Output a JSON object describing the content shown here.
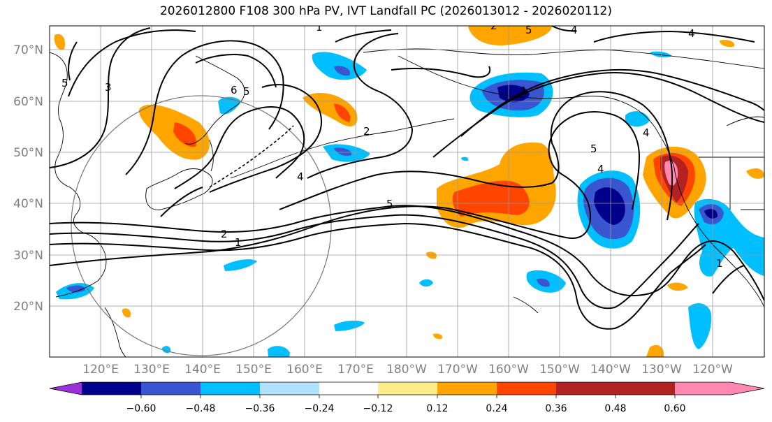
{
  "title": "2026012800 F108 300 hPa PV, IVT Landfall PC (2026013012 - 2026020112)",
  "map": {
    "lon_labels": [
      "120°E",
      "130°E",
      "140°E",
      "150°E",
      "160°E",
      "170°E",
      "180°W",
      "170°W",
      "160°W",
      "150°W",
      "140°W",
      "130°W",
      "120°W"
    ],
    "lat_labels": [
      "70°N",
      "60°N",
      "50°N",
      "40°N",
      "30°N",
      "20°N"
    ],
    "contour_labels": [
      "1",
      "2",
      "3",
      "4",
      "5",
      "5",
      "6",
      "5",
      "4",
      "2",
      "2",
      "1",
      "5",
      "4",
      "5",
      "4",
      "4",
      "1",
      "1"
    ]
  },
  "colorbar": {
    "colors": [
      "#9b30d9",
      "#00008b",
      "#3a55d0",
      "#00bfff",
      "#b0e2ff",
      "#ffffff",
      "#ffec8b",
      "#ffa500",
      "#ff4500",
      "#b22222",
      "#ff88b0"
    ],
    "tick_labels": [
      "−0.60",
      "−0.48",
      "−0.36",
      "−0.24",
      "−0.12",
      "0.12",
      "0.24",
      "0.36",
      "0.48",
      "0.60"
    ]
  }
}
